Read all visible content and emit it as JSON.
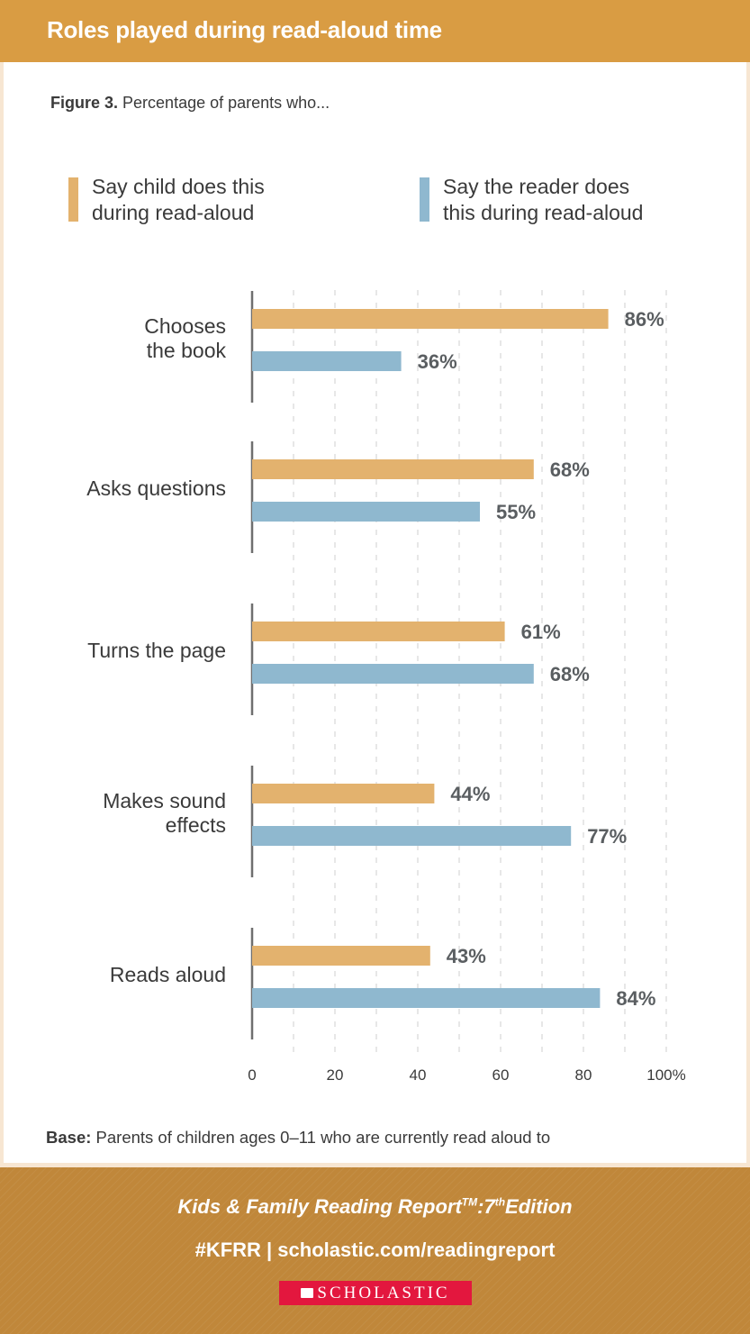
{
  "header": {
    "title": "Roles played during read-aloud time"
  },
  "figure": {
    "label": "Figure 3.",
    "caption": "Percentage of parents who..."
  },
  "colors": {
    "child": "#e3b26e",
    "reader": "#8fb8cf",
    "header": "#d99c43",
    "footer": "#c0873a",
    "logo": "#e3173e",
    "axis": "#6f6f6f",
    "grid": "#cfcfcf",
    "text": "#3a3a3a",
    "value_text": "#5a5e61"
  },
  "chart_data": {
    "type": "bar",
    "orientation": "horizontal",
    "title": "Roles played during read-aloud time",
    "subtitle": "Figure 3. Percentage of parents who...",
    "categories": [
      [
        "Chooses",
        "the book"
      ],
      [
        "Asks questions"
      ],
      [
        "Turns the page"
      ],
      [
        "Makes sound",
        "effects"
      ],
      [
        "Reads aloud"
      ]
    ],
    "series": [
      {
        "name": "Say child does this during read-aloud",
        "legend_lines": [
          "Say child does this",
          "during read-aloud"
        ],
        "values": [
          86,
          68,
          61,
          44,
          43
        ],
        "labels": [
          "86%",
          "68%",
          "61%",
          "44%",
          "43%"
        ]
      },
      {
        "name": "Say the reader does this during read-aloud",
        "legend_lines": [
          "Say the reader does",
          "this during read-aloud"
        ],
        "values": [
          36,
          55,
          68,
          77,
          84
        ],
        "labels": [
          "36%",
          "55%",
          "68%",
          "77%",
          "84%"
        ]
      }
    ],
    "xlim": [
      0,
      100
    ],
    "xticks": [
      0,
      20,
      40,
      60,
      80,
      100
    ],
    "xtick_labels": [
      "0",
      "20",
      "40",
      "60",
      "80",
      "100%"
    ],
    "grid": "vertical dashed every 10",
    "legend_position": "top",
    "xlabel": "",
    "ylabel": ""
  },
  "base_note": {
    "label": "Base:",
    "text": "Parents of children ages 0–11 who are currently read aloud to"
  },
  "footer": {
    "report_title": "Kids & Family Reading Report",
    "trademark": "TM",
    "edition_sep": ":",
    "edition_num": "7",
    "edition_suffix": "th",
    "edition_word": "Edition",
    "links": "#KFRR | scholastic.com/readingreport",
    "logo_text": "SCHOLASTIC"
  }
}
